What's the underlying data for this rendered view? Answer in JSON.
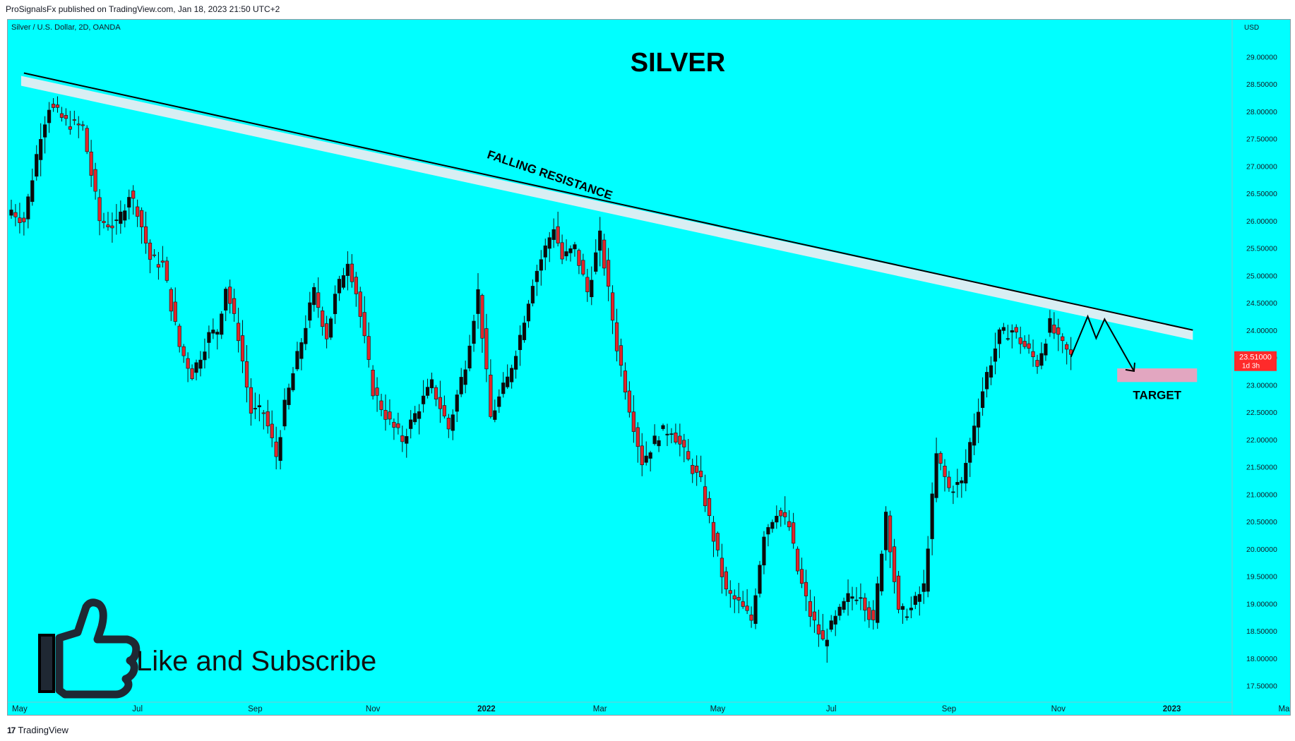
{
  "header": {
    "published_by": "ProSignalsFx published on TradingView.com, Jan 18, 2023 21:50 UTC+2"
  },
  "footer": {
    "brand_logo": "17",
    "brand": "TradingView"
  },
  "colors": {
    "background": "#00ffff",
    "candle_up": "#0b0b0b",
    "candle_down": "#e0262b",
    "resistance_band": "#d8eef3",
    "target_zone": "#e2a6c0",
    "price_tag": "#ff2a2a"
  },
  "chart_data": {
    "type": "candlestick",
    "symbol": "Silver / U.S. Dollar, 2D, OANDA",
    "title": "SILVER",
    "currency": "USD",
    "ylim": [
      17.3,
      29.3
    ],
    "y_ticks": [
      "29.00000",
      "28.50000",
      "28.00000",
      "27.50000",
      "27.00000",
      "26.50000",
      "26.00000",
      "25.50000",
      "25.00000",
      "24.50000",
      "24.00000",
      "23.50000",
      "23.00000",
      "22.50000",
      "22.00000",
      "21.50000",
      "21.00000",
      "20.50000",
      "20.00000",
      "19.50000",
      "19.00000",
      "18.50000",
      "18.00000",
      "17.50000"
    ],
    "x_ticks": [
      {
        "label": "May",
        "bold": false
      },
      {
        "label": "Jul",
        "bold": false
      },
      {
        "label": "Sep",
        "bold": false
      },
      {
        "label": "Nov",
        "bold": false
      },
      {
        "label": "2022",
        "bold": true
      },
      {
        "label": "Mar",
        "bold": false
      },
      {
        "label": "May",
        "bold": false
      },
      {
        "label": "Jul",
        "bold": false
      },
      {
        "label": "Sep",
        "bold": false
      },
      {
        "label": "Nov",
        "bold": false
      },
      {
        "label": "2023",
        "bold": true
      },
      {
        "label": "Mar",
        "bold": false
      }
    ],
    "close_path": [
      [
        0,
        26.2
      ],
      [
        3,
        26.0
      ],
      [
        7,
        27.6
      ],
      [
        9,
        28.1
      ],
      [
        13,
        27.8
      ],
      [
        17,
        27.7
      ],
      [
        21,
        26.0
      ],
      [
        25,
        25.9
      ],
      [
        28,
        26.5
      ],
      [
        30,
        26.2
      ],
      [
        33,
        25.3
      ],
      [
        36,
        25.2
      ],
      [
        40,
        23.7
      ],
      [
        43,
        23.2
      ],
      [
        47,
        23.9
      ],
      [
        49,
        24.0
      ],
      [
        51,
        24.8
      ],
      [
        54,
        23.9
      ],
      [
        57,
        22.5
      ],
      [
        60,
        22.5
      ],
      [
        63,
        21.7
      ],
      [
        65,
        22.6
      ],
      [
        69,
        23.8
      ],
      [
        72,
        24.7
      ],
      [
        75,
        23.9
      ],
      [
        77,
        24.6
      ],
      [
        80,
        25.3
      ],
      [
        82,
        24.7
      ],
      [
        86,
        22.9
      ],
      [
        90,
        22.3
      ],
      [
        93,
        22.0
      ],
      [
        97,
        22.6
      ],
      [
        100,
        23.0
      ],
      [
        104,
        22.2
      ],
      [
        108,
        23.4
      ],
      [
        111,
        24.7
      ],
      [
        114,
        22.4
      ],
      [
        118,
        23.1
      ],
      [
        121,
        23.9
      ],
      [
        124,
        24.9
      ],
      [
        127,
        25.5
      ],
      [
        129,
        25.9
      ],
      [
        131,
        25.3
      ],
      [
        134,
        25.5
      ],
      [
        137,
        24.7
      ],
      [
        140,
        25.7
      ],
      [
        144,
        23.7
      ],
      [
        147,
        22.6
      ],
      [
        150,
        21.6
      ],
      [
        154,
        22.1
      ],
      [
        157,
        22.2
      ],
      [
        161,
        21.6
      ],
      [
        164,
        21.2
      ],
      [
        167,
        20.2
      ],
      [
        170,
        19.2
      ],
      [
        173,
        19.0
      ],
      [
        176,
        18.7
      ],
      [
        179,
        20.3
      ],
      [
        182,
        20.7
      ],
      [
        185,
        20.4
      ],
      [
        187,
        19.6
      ],
      [
        190,
        18.8
      ],
      [
        193,
        18.3
      ],
      [
        196,
        18.7
      ],
      [
        199,
        19.1
      ],
      [
        202,
        19.2
      ],
      [
        205,
        18.6
      ],
      [
        208,
        20.7
      ],
      [
        211,
        18.8
      ],
      [
        214,
        18.9
      ],
      [
        217,
        19.3
      ],
      [
        220,
        21.7
      ],
      [
        223,
        21.1
      ],
      [
        226,
        21.2
      ],
      [
        229,
        22.3
      ],
      [
        232,
        23.2
      ],
      [
        235,
        23.9
      ],
      [
        238,
        24.0
      ],
      [
        241,
        23.7
      ],
      [
        244,
        23.4
      ],
      [
        247,
        24.1
      ],
      [
        249,
        23.8
      ],
      [
        252,
        23.51
      ]
    ],
    "n_bars": 253,
    "annotations": {
      "falling_resistance_label": "FALLING RESISTANCE",
      "target_label": "TARGET",
      "cta_label": "Like and Subscribe",
      "resistance_line": {
        "start": [
          3,
          28.7
        ],
        "end": [
          281,
          24.0
        ]
      },
      "target_zone": {
        "x_range": [
          263,
          282
        ],
        "y_range": [
          23.05,
          23.3
        ]
      },
      "projection_path": [
        [
          252,
          23.51
        ],
        [
          256,
          24.25
        ],
        [
          258,
          23.85
        ],
        [
          260,
          24.2
        ],
        [
          267,
          23.25
        ]
      ]
    },
    "last_price": {
      "value": "23.51000",
      "countdown": "1d 3h"
    }
  }
}
